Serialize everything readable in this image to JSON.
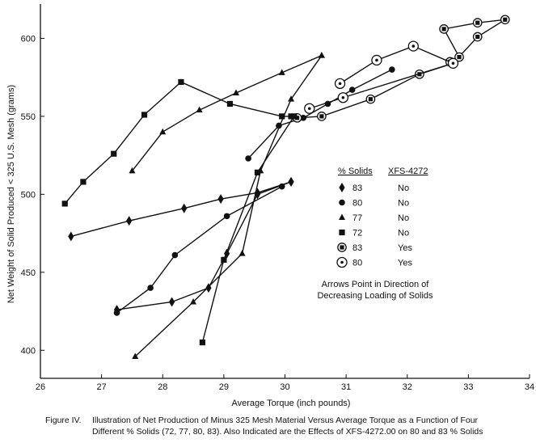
{
  "chart_data": {
    "type": "line",
    "title": "",
    "xlabel": "Average Torque (inch pounds)",
    "ylabel": "Net Weight of Solid Produced < 325 U.S. Mesh (grams)",
    "xlim": [
      26,
      34
    ],
    "ylim": [
      382,
      622
    ],
    "xticks": [
      26,
      27,
      28,
      29,
      30,
      31,
      32,
      33,
      34
    ],
    "yticks": [
      400,
      450,
      500,
      550,
      600
    ],
    "grid": false,
    "legend_position": "right-center",
    "legend_headers": {
      "solids": "% Solids",
      "additive": "XFS-4272"
    },
    "series": [
      {
        "solids": "83",
        "additive": "No",
        "marker": "diamond",
        "points": [
          [
            26.5,
            473
          ],
          [
            27.45,
            483
          ],
          [
            28.35,
            491
          ],
          [
            28.95,
            497
          ],
          [
            29.55,
            501
          ],
          [
            30.1,
            508
          ]
        ]
      },
      {
        "solids": "80",
        "additive": "No",
        "marker": "circle",
        "points": [
          [
            29.4,
            523
          ],
          [
            29.9,
            544
          ],
          [
            30.3,
            549
          ],
          [
            30.7,
            558
          ],
          [
            31.1,
            567
          ],
          [
            31.75,
            580
          ]
        ]
      },
      {
        "solids": "77",
        "additive": "No",
        "marker": "triangle",
        "points": [
          [
            27.5,
            515
          ],
          [
            28,
            540
          ],
          [
            28.6,
            554
          ],
          [
            29.2,
            565
          ],
          [
            29.95,
            578
          ],
          [
            30.6,
            589
          ]
        ]
      },
      {
        "solids": "72",
        "additive": "No",
        "marker": "square",
        "points": [
          [
            26.4,
            494
          ],
          [
            26.7,
            508
          ],
          [
            27.2,
            526
          ],
          [
            27.7,
            551
          ],
          [
            28.3,
            572
          ],
          [
            29.1,
            558
          ],
          [
            29.95,
            550
          ],
          [
            30.1,
            550
          ]
        ]
      },
      {
        "solids": "83",
        "additive": "Yes",
        "marker": "square-in-circle",
        "points": [
          [
            30.2,
            549
          ],
          [
            30.6,
            550
          ],
          [
            31.4,
            561
          ],
          [
            32.2,
            577
          ],
          [
            32.75,
            584
          ],
          [
            33.15,
            601
          ],
          [
            33.6,
            612
          ],
          [
            33.15,
            610
          ],
          [
            32.6,
            606
          ],
          [
            32.85,
            588
          ],
          [
            32.7,
            585
          ]
        ]
      },
      {
        "solids": "80",
        "additive": "Yes",
        "marker": "dot-in-circle",
        "points": [
          [
            30.9,
            571
          ],
          [
            31.5,
            586
          ],
          [
            32.1,
            595
          ],
          [
            32.75,
            584
          ],
          [
            30.95,
            562
          ],
          [
            30.4,
            555
          ]
        ]
      },
      {
        "solids": "",
        "additive": "",
        "marker": "diamond",
        "points": [
          [
            30.1,
            508
          ],
          [
            29.55,
            500
          ],
          [
            29.05,
            462
          ],
          [
            28.75,
            440
          ],
          [
            28.15,
            431
          ],
          [
            27.25,
            426
          ]
        ]
      },
      {
        "solids": "",
        "additive": "",
        "marker": "circle",
        "points": [
          [
            29.95,
            505
          ],
          [
            29.05,
            486
          ],
          [
            28.2,
            461
          ],
          [
            27.8,
            440
          ],
          [
            27.25,
            424
          ]
        ]
      },
      {
        "solids": "",
        "additive": "",
        "marker": "triangle",
        "points": [
          [
            30.6,
            589
          ],
          [
            30.1,
            561
          ],
          [
            29.6,
            515
          ],
          [
            29.3,
            462
          ],
          [
            28.5,
            431
          ],
          [
            27.55,
            396
          ]
        ]
      },
      {
        "solids": "",
        "additive": "",
        "marker": "square",
        "points": [
          [
            30.15,
            550
          ],
          [
            29.55,
            514
          ],
          [
            29.0,
            458
          ],
          [
            28.65,
            405
          ]
        ]
      }
    ],
    "annotations": [
      "Arrows Point in Direction of",
      "Decreasing Loading of Solids"
    ],
    "caption": {
      "label": "Figure IV.",
      "line1": "Illustration of Net Production of Minus 325 Mesh Material Versus Average Torque as a Function of Four",
      "line2": "Different % Solids (72, 77, 80, 83). Also Indicated are the Effects of XFS-4272.00 on 80 and 83 % Solids"
    },
    "colors": {
      "ink": "#111111",
      "background": "#ffffff"
    }
  }
}
